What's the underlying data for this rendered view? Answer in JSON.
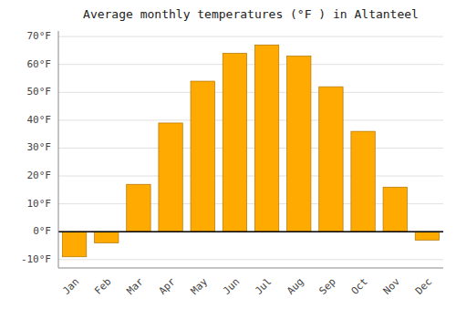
{
  "chart_data": {
    "type": "bar",
    "title": "Average monthly temperatures (°F ) in Altanteel",
    "categories": [
      "Jan",
      "Feb",
      "Mar",
      "Apr",
      "May",
      "Jun",
      "Jul",
      "Aug",
      "Sep",
      "Oct",
      "Nov",
      "Dec"
    ],
    "values": [
      -9,
      -4,
      17,
      39,
      54,
      64,
      67,
      63,
      52,
      36,
      16,
      -3
    ],
    "color": "#FFAA00",
    "ylim": [
      -13,
      72
    ],
    "yticks": [
      {
        "value": -10,
        "label": "-10°F"
      },
      {
        "value": 0,
        "label": "0°F"
      },
      {
        "value": 10,
        "label": "10°F"
      },
      {
        "value": 20,
        "label": "20°F"
      },
      {
        "value": 30,
        "label": "30°F"
      },
      {
        "value": 40,
        "label": "40°F"
      },
      {
        "value": 50,
        "label": "50°F"
      },
      {
        "value": 60,
        "label": "60°F"
      },
      {
        "value": 70,
        "label": "70°F"
      }
    ],
    "grid": true
  }
}
